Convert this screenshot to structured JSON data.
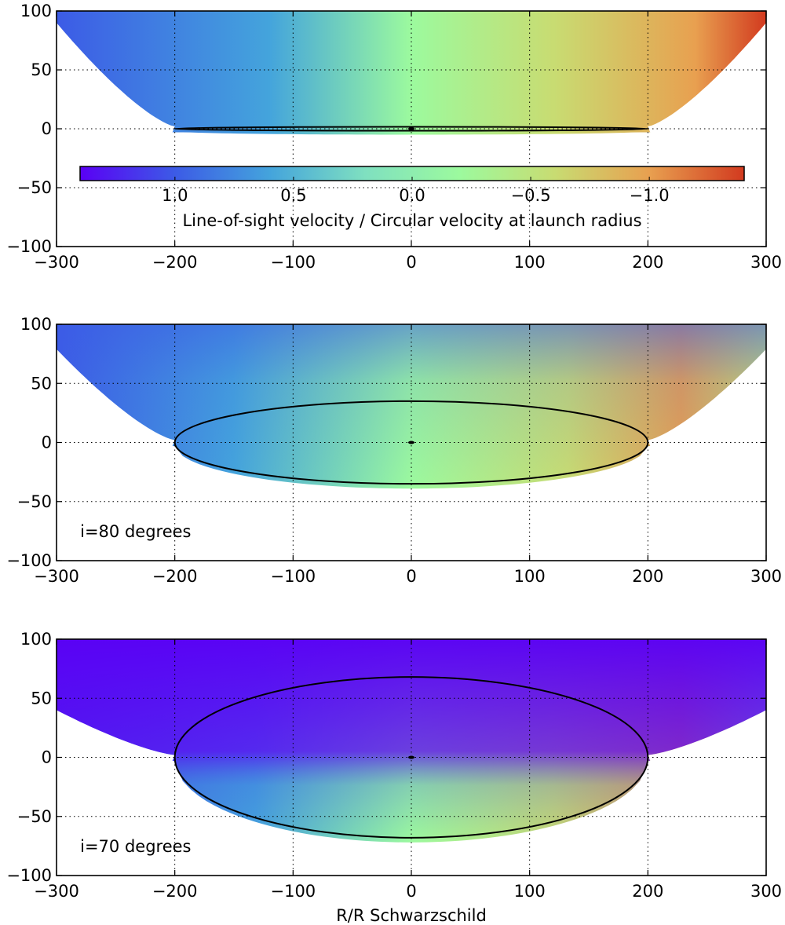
{
  "chart_data": [
    {
      "type": "heatmap",
      "annotation": "",
      "inclination_deg": null,
      "xlim": [
        -300,
        300
      ],
      "ylim": [
        -100,
        100
      ],
      "xticks": [
        -300,
        -200,
        -100,
        0,
        100,
        200,
        300
      ],
      "yticks": [
        -100,
        -50,
        0,
        50,
        100
      ],
      "xlabel": "",
      "grid": true,
      "disk_ellipse": {
        "center": [
          0,
          0
        ],
        "semi_major": 200,
        "semi_minor": 1.5
      },
      "outflow_boundary": {
        "inner_radius": 200,
        "height_at_edge_x300": 88,
        "lower_edge_depth": 3
      },
      "colorbar": {
        "label": "Line-of-sight velocity / Circular velocity at launch radius",
        "ticks": [
          "1.0",
          "0.5",
          "0.0",
          "−0.5",
          "−1.0"
        ],
        "tick_values": [
          1.0,
          0.5,
          0.0,
          -0.5,
          -1.0
        ],
        "range": [
          1.4,
          -1.4
        ],
        "orientation": "horizontal",
        "colormap": "rainbow"
      }
    },
    {
      "type": "heatmap",
      "annotation": "i=80 degrees",
      "inclination_deg": 80,
      "xlim": [
        -300,
        300
      ],
      "ylim": [
        -100,
        100
      ],
      "xticks": [
        -300,
        -200,
        -100,
        0,
        100,
        200,
        300
      ],
      "yticks": [
        -100,
        -50,
        0,
        50,
        100
      ],
      "xlabel": "",
      "grid": true,
      "disk_ellipse": {
        "center": [
          0,
          0
        ],
        "semi_major": 200,
        "semi_minor": 35
      },
      "outflow_boundary": {
        "inner_radius": 200,
        "height_at_edge_x300": 77,
        "lower_edge_depth": 37
      }
    },
    {
      "type": "heatmap",
      "annotation": "i=70 degrees",
      "inclination_deg": 70,
      "xlim": [
        -300,
        300
      ],
      "ylim": [
        -100,
        100
      ],
      "xticks": [
        -300,
        -200,
        -100,
        0,
        100,
        200,
        300
      ],
      "yticks": [
        -100,
        -50,
        0,
        50,
        100
      ],
      "xlabel": "R/R  Schwarzschild",
      "grid": true,
      "disk_ellipse": {
        "center": [
          0,
          0
        ],
        "semi_major": 200,
        "semi_minor": 68
      },
      "outflow_boundary": {
        "inner_radius": 200,
        "height_at_edge_x300": 38,
        "lower_edge_depth": 70
      }
    }
  ]
}
